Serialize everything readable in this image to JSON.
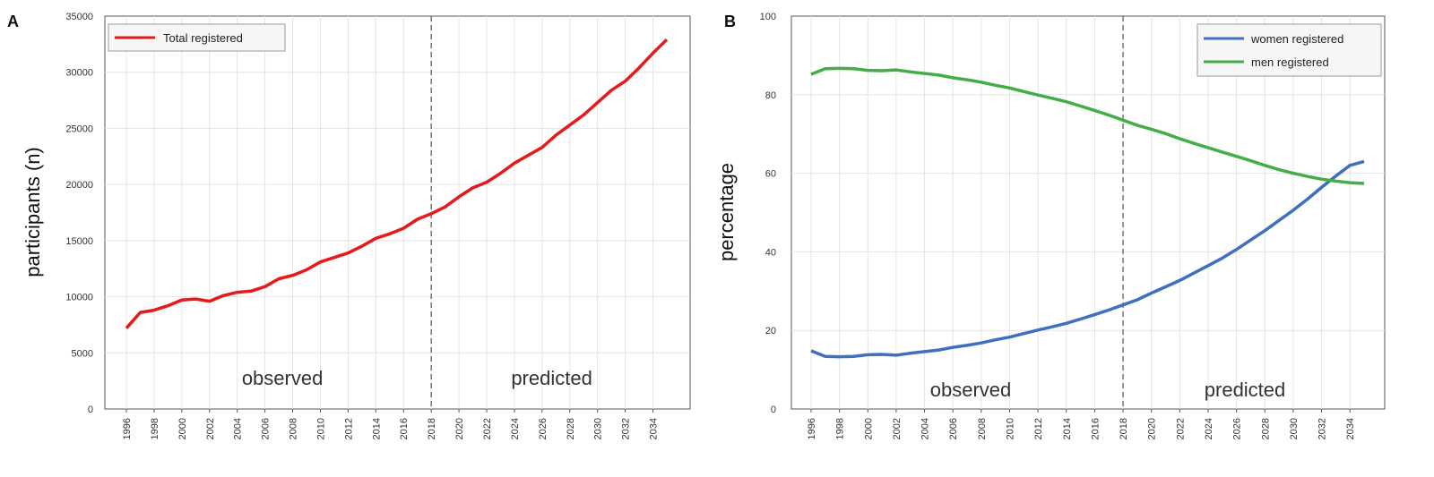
{
  "chart_data": [
    {
      "panel": "A",
      "type": "line",
      "title": "",
      "xlabel": "",
      "ylabel": "participants (n)",
      "xlim": [
        1996,
        2035
      ],
      "ylim": [
        0,
        35000
      ],
      "yticks": [
        0,
        5000,
        10000,
        15000,
        20000,
        25000,
        30000,
        35000
      ],
      "xticks": [
        1996,
        1998,
        2000,
        2002,
        2004,
        2006,
        2008,
        2010,
        2012,
        2014,
        2016,
        2018,
        2020,
        2022,
        2024,
        2026,
        2028,
        2030,
        2032,
        2034
      ],
      "grid": true,
      "legend_position": "top-left",
      "divider_x": 2018,
      "region_labels": [
        "observed",
        "predicted"
      ],
      "series": [
        {
          "name": "Total registered",
          "color": "#e8191b",
          "x": [
            1996,
            1997,
            1998,
            1999,
            2000,
            2001,
            2002,
            2003,
            2004,
            2005,
            2006,
            2007,
            2008,
            2009,
            2010,
            2011,
            2012,
            2013,
            2014,
            2015,
            2016,
            2017,
            2018,
            2019,
            2020,
            2021,
            2022,
            2023,
            2024,
            2025,
            2026,
            2027,
            2028,
            2029,
            2030,
            2031,
            2032,
            2033,
            2034,
            2035
          ],
          "y": [
            7200,
            8600,
            8800,
            9200,
            9700,
            9800,
            9600,
            10100,
            10400,
            10500,
            10900,
            11600,
            11900,
            12400,
            13100,
            13500,
            13900,
            14500,
            15200,
            15600,
            16100,
            16900,
            17400,
            18000,
            18900,
            19700,
            20200,
            21000,
            21900,
            22600,
            23300,
            24400,
            25300,
            26200,
            27300,
            28400,
            29200,
            30400,
            31700,
            32900
          ]
        }
      ]
    },
    {
      "panel": "B",
      "type": "line",
      "title": "",
      "xlabel": "",
      "ylabel": "percentage",
      "xlim": [
        1996,
        2035
      ],
      "ylim": [
        0,
        100
      ],
      "yticks": [
        0,
        20,
        40,
        60,
        80,
        100
      ],
      "xticks": [
        1996,
        1998,
        2000,
        2002,
        2004,
        2006,
        2008,
        2010,
        2012,
        2014,
        2016,
        2018,
        2020,
        2022,
        2024,
        2026,
        2028,
        2030,
        2032,
        2034
      ],
      "grid": true,
      "legend_position": "top-right",
      "divider_x": 2018,
      "region_labels": [
        "observed",
        "predicted"
      ],
      "series": [
        {
          "name": "women registered",
          "color": "#3f6fbf",
          "x": [
            1996,
            1997,
            1998,
            1999,
            2000,
            2001,
            2002,
            2003,
            2004,
            2005,
            2006,
            2007,
            2008,
            2009,
            2010,
            2011,
            2012,
            2013,
            2014,
            2015,
            2016,
            2017,
            2018,
            2019,
            2020,
            2021,
            2022,
            2023,
            2024,
            2025,
            2026,
            2027,
            2028,
            2029,
            2030,
            2031,
            2032,
            2033,
            2034,
            2035
          ],
          "y": [
            14.8,
            13.4,
            13.3,
            13.4,
            13.8,
            13.9,
            13.7,
            14.2,
            14.6,
            15.0,
            15.7,
            16.2,
            16.8,
            17.6,
            18.3,
            19.2,
            20.1,
            20.9,
            21.8,
            22.9,
            24.0,
            25.2,
            26.5,
            27.8,
            29.5,
            31.1,
            32.7,
            34.6,
            36.5,
            38.4,
            40.6,
            43.0,
            45.4,
            48.0,
            50.6,
            53.4,
            56.4,
            59.3,
            62.0,
            63.0
          ]
        },
        {
          "name": "men registered",
          "color": "#44ad47",
          "x": [
            1996,
            1997,
            1998,
            1999,
            2000,
            2001,
            2002,
            2003,
            2004,
            2005,
            2006,
            2007,
            2008,
            2009,
            2010,
            2011,
            2012,
            2013,
            2014,
            2015,
            2016,
            2017,
            2018,
            2019,
            2020,
            2021,
            2022,
            2023,
            2024,
            2025,
            2026,
            2027,
            2028,
            2029,
            2030,
            2031,
            2032,
            2033,
            2034,
            2035
          ],
          "y": [
            85.2,
            86.6,
            86.7,
            86.6,
            86.2,
            86.1,
            86.3,
            85.8,
            85.4,
            85.0,
            84.3,
            83.8,
            83.2,
            82.4,
            81.7,
            80.8,
            79.9,
            79.1,
            78.2,
            77.1,
            76.0,
            74.8,
            73.5,
            72.2,
            71.2,
            70.1,
            68.8,
            67.6,
            66.5,
            65.4,
            64.3,
            63.2,
            62.0,
            60.9,
            60.0,
            59.2,
            58.5,
            58.0,
            57.6,
            57.4
          ]
        }
      ]
    }
  ]
}
